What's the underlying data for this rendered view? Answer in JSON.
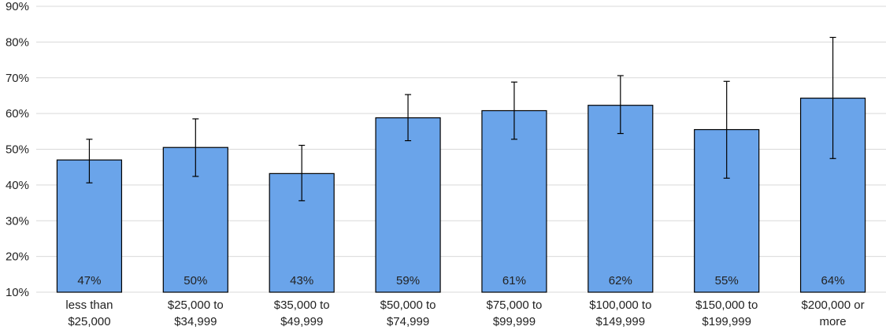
{
  "chart_data": {
    "type": "bar",
    "categories": [
      [
        "less than",
        "$25,000"
      ],
      [
        "$25,000 to",
        "$34,999"
      ],
      [
        "$35,000 to",
        "$49,999"
      ],
      [
        "$50,000 to",
        "$74,999"
      ],
      [
        "$75,000 to",
        "$99,999"
      ],
      [
        "$100,000 to",
        "$149,999"
      ],
      [
        "$150,000 to",
        "$199,999"
      ],
      [
        "$200,000 or",
        "more"
      ]
    ],
    "values": [
      0.47,
      0.505,
      0.432,
      0.588,
      0.608,
      0.623,
      0.555,
      0.643
    ],
    "data_labels": [
      "47%",
      "50%",
      "43%",
      "59%",
      "61%",
      "62%",
      "55%",
      "64%"
    ],
    "error_low": [
      0.406,
      0.424,
      0.356,
      0.524,
      0.528,
      0.544,
      0.419,
      0.474
    ],
    "error_high": [
      0.528,
      0.585,
      0.511,
      0.653,
      0.688,
      0.706,
      0.69,
      0.813
    ],
    "ylim": [
      0.1,
      0.9
    ],
    "yticks": [
      0.1,
      0.2,
      0.3,
      0.4,
      0.5,
      0.6,
      0.7,
      0.8,
      0.9
    ],
    "ytick_labels": [
      "10%",
      "20%",
      "30%",
      "40%",
      "50%",
      "60%",
      "70%",
      "80%",
      "90%"
    ],
    "grid": true,
    "bar_color": "#6aa4ea",
    "bar_edge_color": "#000000",
    "gridline_color": "#d9d9d9",
    "title": "",
    "xlabel": "",
    "ylabel": ""
  }
}
